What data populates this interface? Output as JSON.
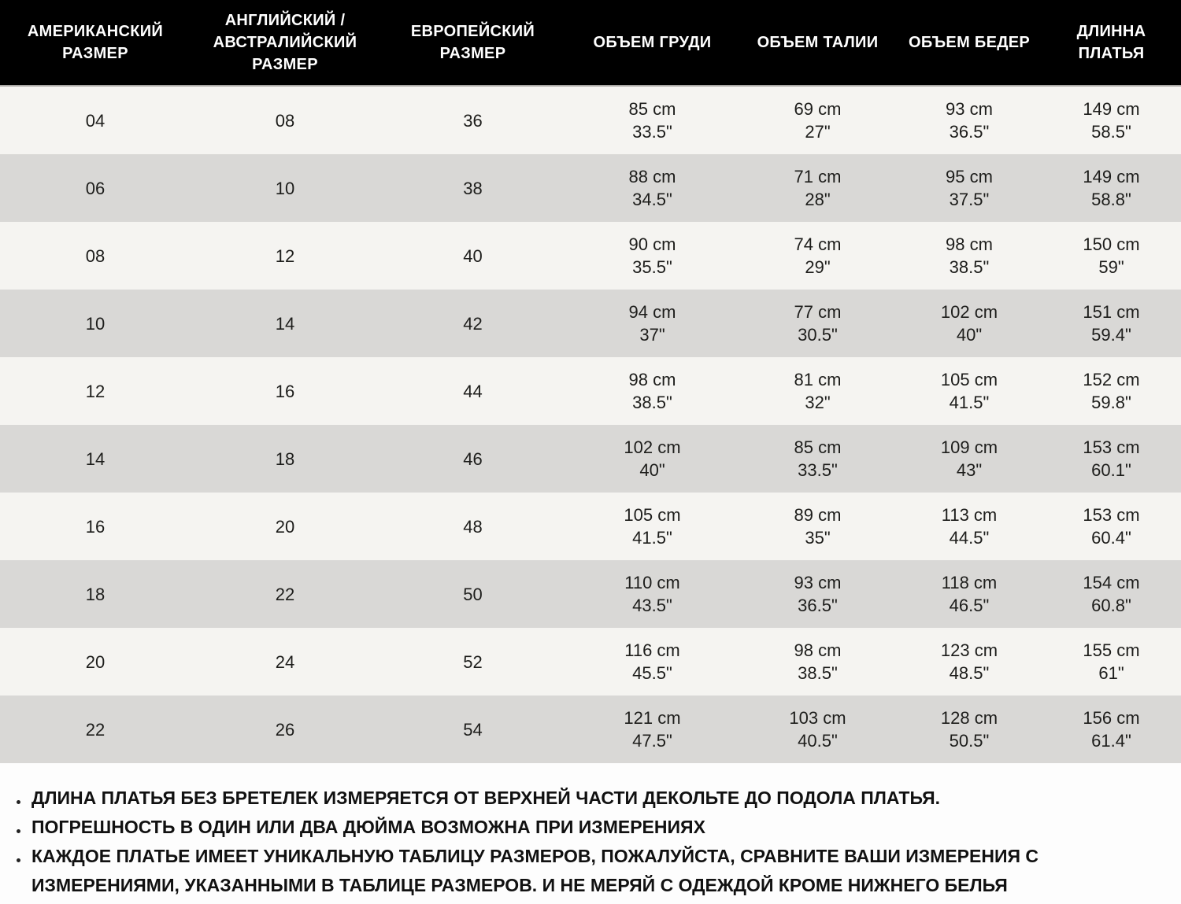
{
  "table": {
    "columns": [
      "АМЕРИКАНСКИЙ\nРАЗМЕР",
      "АНГЛИЙСКИЙ /\nАВСТРАЛИЙСКИЙ РАЗМЕР",
      "ЕВРОПЕЙСКИЙ\nРАЗМЕР",
      "ОБЪЕМ ГРУДИ",
      "ОБЪЕМ ТАЛИИ",
      "ОБЪЕМ БЕДЕР",
      "ДЛИННА\nПЛАТЬЯ"
    ],
    "rows": [
      {
        "us": "04",
        "uk": "08",
        "eu": "36",
        "bust": [
          "85 cm",
          "33.5\""
        ],
        "waist": [
          "69 cm",
          "27\""
        ],
        "hips": [
          "93 cm",
          "36.5\""
        ],
        "length": [
          "149 cm",
          "58.5\""
        ]
      },
      {
        "us": "06",
        "uk": "10",
        "eu": "38",
        "bust": [
          "88 cm",
          "34.5\""
        ],
        "waist": [
          "71 cm",
          "28\""
        ],
        "hips": [
          "95 cm",
          "37.5\""
        ],
        "length": [
          "149 cm",
          "58.8\""
        ]
      },
      {
        "us": "08",
        "uk": "12",
        "eu": "40",
        "bust": [
          "90 cm",
          "35.5\""
        ],
        "waist": [
          "74 cm",
          "29\""
        ],
        "hips": [
          "98 cm",
          "38.5\""
        ],
        "length": [
          "150 cm",
          "59\""
        ]
      },
      {
        "us": "10",
        "uk": "14",
        "eu": "42",
        "bust": [
          "94 cm",
          "37\""
        ],
        "waist": [
          "77 cm",
          "30.5\""
        ],
        "hips": [
          "102 cm",
          "40\""
        ],
        "length": [
          "151 cm",
          "59.4\""
        ]
      },
      {
        "us": "12",
        "uk": "16",
        "eu": "44",
        "bust": [
          "98 cm",
          "38.5\""
        ],
        "waist": [
          "81 cm",
          "32\""
        ],
        "hips": [
          "105 cm",
          "41.5\""
        ],
        "length": [
          "152 cm",
          "59.8\""
        ]
      },
      {
        "us": "14",
        "uk": "18",
        "eu": "46",
        "bust": [
          "102 cm",
          "40\""
        ],
        "waist": [
          "85 cm",
          "33.5\""
        ],
        "hips": [
          "109 cm",
          "43\""
        ],
        "length": [
          "153 cm",
          "60.1\""
        ]
      },
      {
        "us": "16",
        "uk": "20",
        "eu": "48",
        "bust": [
          "105 cm",
          "41.5\""
        ],
        "waist": [
          "89 cm",
          "35\""
        ],
        "hips": [
          "113 cm",
          "44.5\""
        ],
        "length": [
          "153 cm",
          "60.4\""
        ]
      },
      {
        "us": "18",
        "uk": "22",
        "eu": "50",
        "bust": [
          "110 cm",
          "43.5\""
        ],
        "waist": [
          "93 cm",
          "36.5\""
        ],
        "hips": [
          "118 cm",
          "46.5\""
        ],
        "length": [
          "154 cm",
          "60.8\""
        ]
      },
      {
        "us": "20",
        "uk": "24",
        "eu": "52",
        "bust": [
          "116 cm",
          "45.5\""
        ],
        "waist": [
          "98 cm",
          "38.5\""
        ],
        "hips": [
          "123 cm",
          "48.5\""
        ],
        "length": [
          "155 cm",
          "61\""
        ]
      },
      {
        "us": "22",
        "uk": "26",
        "eu": "54",
        "bust": [
          "121 cm",
          "47.5\""
        ],
        "waist": [
          "103 cm",
          "40.5\""
        ],
        "hips": [
          "128 cm",
          "50.5\""
        ],
        "length": [
          "156 cm",
          "61.4\""
        ]
      }
    ]
  },
  "notes": [
    "ДЛИНА ПЛАТЬЯ БЕЗ БРЕТЕЛЕК ИЗМЕРЯЕТСЯ ОТ ВЕРХНЕЙ ЧАСТИ ДЕКОЛЬТЕ ДО ПОДОЛА ПЛАТЬЯ.",
    "ПОГРЕШНОСТЬ В ОДИН ИЛИ ДВА ДЮЙМА ВОЗМОЖНА ПРИ ИЗМЕРЕНИЯХ",
    "КАЖДОЕ ПЛАТЬЕ ИМЕЕТ УНИКАЛЬНУЮ ТАБЛИЦУ РАЗМЕРОВ, ПОЖАЛУЙСТА, СРАВНИТЕ ВАШИ ИЗМЕРЕНИЯ С ИЗМЕРЕНИЯМИ, УКАЗАННЫМИ В ТАБЛИЦЕ РАЗМЕРОВ. И НЕ МЕРЯЙ С ОДЕЖДОЙ КРОМЕ НИЖНЕГО БЕЛЬЯ"
  ],
  "colors": {
    "header_bg": "#000000",
    "header_text": "#ffffff",
    "row_light": "#f5f4f1",
    "row_dark": "#d9d8d6",
    "body_text": "#1d1d1b"
  }
}
